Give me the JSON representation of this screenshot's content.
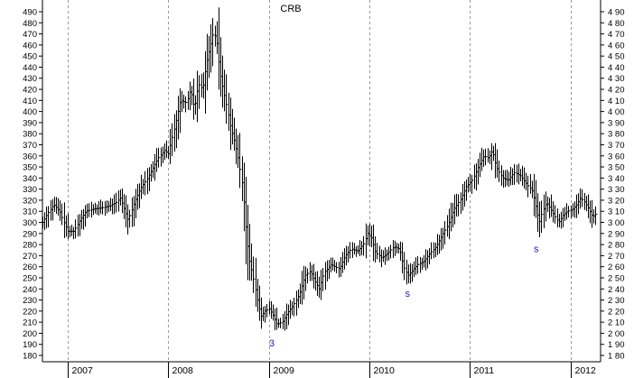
{
  "chart_data": {
    "type": "bar",
    "subtype": "ohlc-weekly",
    "title": "CRB",
    "xlabel": "",
    "ylabel": "",
    "ylim": [
      180,
      490
    ],
    "y_ticks": [
      180,
      190,
      200,
      210,
      220,
      230,
      240,
      250,
      260,
      270,
      280,
      290,
      300,
      310,
      320,
      330,
      340,
      350,
      360,
      370,
      380,
      390,
      400,
      410,
      420,
      430,
      440,
      450,
      460,
      470,
      480,
      490
    ],
    "y_tick_labels_left": [
      "180",
      "190",
      "200",
      "210",
      "220",
      "230",
      "240",
      "250",
      "260",
      "270",
      "280",
      "290",
      "300",
      "310",
      "320",
      "330",
      "340",
      "350",
      "360",
      "370",
      "380",
      "390",
      "400",
      "410",
      "420",
      "430",
      "440",
      "450",
      "460",
      "470",
      "480",
      "490"
    ],
    "y_tick_labels_right": [
      "1 80",
      "1 90",
      "2 00",
      "2 10",
      "2 20",
      "2 30",
      "2 40",
      "2 50",
      "2 60",
      "2 70",
      "2 80",
      "2 90",
      "3 00",
      "3 10",
      "3 20",
      "3 30",
      "3 40",
      "3 50",
      "3 60",
      "3 70",
      "3 80",
      "3 90",
      "4 00",
      "4 10",
      "4 20",
      "4 30",
      "4 40",
      "4 50",
      "4 60",
      "4 70",
      "4 80",
      "4 90"
    ],
    "x_range": [
      2006.75,
      2012.3
    ],
    "year_labels": [
      {
        "t": 2007.0,
        "label": "2007"
      },
      {
        "t": 2008.0,
        "label": "2008"
      },
      {
        "t": 2009.0,
        "label": "2009"
      },
      {
        "t": 2010.0,
        "label": "2010"
      },
      {
        "t": 2011.0,
        "label": "2011"
      },
      {
        "t": 2012.0,
        "label": "2012"
      }
    ],
    "grid": {
      "vertical_dashed_at_year_starts": true,
      "horizontal": false
    },
    "series": [
      {
        "kind": "weekly-close-path",
        "color": "#000000",
        "points": [
          [
            2006.75,
            300
          ],
          [
            2006.8,
            308
          ],
          [
            2006.86,
            316
          ],
          [
            2006.92,
            310
          ],
          [
            2006.96,
            300
          ],
          [
            2007.0,
            292
          ],
          [
            2007.06,
            292
          ],
          [
            2007.12,
            302
          ],
          [
            2007.18,
            310
          ],
          [
            2007.25,
            312
          ],
          [
            2007.33,
            313
          ],
          [
            2007.42,
            315
          ],
          [
            2007.48,
            318
          ],
          [
            2007.52,
            322
          ],
          [
            2007.56,
            312
          ],
          [
            2007.6,
            302
          ],
          [
            2007.66,
            318
          ],
          [
            2007.72,
            330
          ],
          [
            2007.78,
            338
          ],
          [
            2007.84,
            348
          ],
          [
            2007.9,
            358
          ],
          [
            2007.96,
            365
          ],
          [
            2008.0,
            362
          ],
          [
            2008.06,
            385
          ],
          [
            2008.12,
            410
          ],
          [
            2008.18,
            408
          ],
          [
            2008.22,
            420
          ],
          [
            2008.26,
            402
          ],
          [
            2008.3,
            425
          ],
          [
            2008.34,
            420
          ],
          [
            2008.38,
            445
          ],
          [
            2008.42,
            460
          ],
          [
            2008.45,
            472
          ],
          [
            2008.48,
            462
          ],
          [
            2008.51,
            436
          ],
          [
            2008.54,
            422
          ],
          [
            2008.58,
            405
          ],
          [
            2008.62,
            385
          ],
          [
            2008.66,
            372
          ],
          [
            2008.7,
            355
          ],
          [
            2008.74,
            330
          ],
          [
            2008.77,
            295
          ],
          [
            2008.8,
            268
          ],
          [
            2008.84,
            252
          ],
          [
            2008.88,
            232
          ],
          [
            2008.92,
            215
          ],
          [
            2008.96,
            220
          ],
          [
            2009.0,
            222
          ],
          [
            2009.04,
            216
          ],
          [
            2009.08,
            208
          ],
          [
            2009.13,
            210
          ],
          [
            2009.18,
            218
          ],
          [
            2009.24,
            225
          ],
          [
            2009.3,
            235
          ],
          [
            2009.36,
            252
          ],
          [
            2009.41,
            256
          ],
          [
            2009.45,
            248
          ],
          [
            2009.5,
            240
          ],
          [
            2009.55,
            255
          ],
          [
            2009.62,
            262
          ],
          [
            2009.7,
            258
          ],
          [
            2009.76,
            270
          ],
          [
            2009.82,
            276
          ],
          [
            2009.88,
            274
          ],
          [
            2009.94,
            280
          ],
          [
            2009.98,
            290
          ],
          [
            2010.02,
            286
          ],
          [
            2010.06,
            273
          ],
          [
            2010.12,
            268
          ],
          [
            2010.18,
            272
          ],
          [
            2010.24,
            278
          ],
          [
            2010.3,
            276
          ],
          [
            2010.34,
            260
          ],
          [
            2010.38,
            252
          ],
          [
            2010.42,
            256
          ],
          [
            2010.48,
            262
          ],
          [
            2010.54,
            265
          ],
          [
            2010.6,
            272
          ],
          [
            2010.66,
            278
          ],
          [
            2010.72,
            288
          ],
          [
            2010.78,
            298
          ],
          [
            2010.84,
            312
          ],
          [
            2010.9,
            320
          ],
          [
            2010.96,
            332
          ],
          [
            2011.02,
            338
          ],
          [
            2011.08,
            350
          ],
          [
            2011.14,
            360
          ],
          [
            2011.18,
            358
          ],
          [
            2011.22,
            365
          ],
          [
            2011.26,
            350
          ],
          [
            2011.32,
            340
          ],
          [
            2011.38,
            338
          ],
          [
            2011.44,
            345
          ],
          [
            2011.5,
            342
          ],
          [
            2011.56,
            335
          ],
          [
            2011.62,
            328
          ],
          [
            2011.66,
            312
          ],
          [
            2011.69,
            300
          ],
          [
            2011.72,
            310
          ],
          [
            2011.76,
            318
          ],
          [
            2011.8,
            312
          ],
          [
            2011.84,
            306
          ],
          [
            2011.88,
            300
          ],
          [
            2011.92,
            306
          ],
          [
            2011.97,
            310
          ],
          [
            2012.02,
            312
          ],
          [
            2012.06,
            316
          ],
          [
            2012.1,
            322
          ],
          [
            2012.14,
            318
          ],
          [
            2012.18,
            312
          ],
          [
            2012.22,
            305
          ],
          [
            2012.26,
            308
          ]
        ]
      }
    ],
    "annotations": [
      {
        "text": "3",
        "t": 2009.03,
        "y": 188,
        "color": "#1f1fbf"
      },
      {
        "text": "s",
        "t": 2010.38,
        "y": 233,
        "color": "#1f1fbf"
      },
      {
        "text": "s",
        "t": 2011.66,
        "y": 273,
        "color": "#1f1fbf"
      }
    ]
  }
}
